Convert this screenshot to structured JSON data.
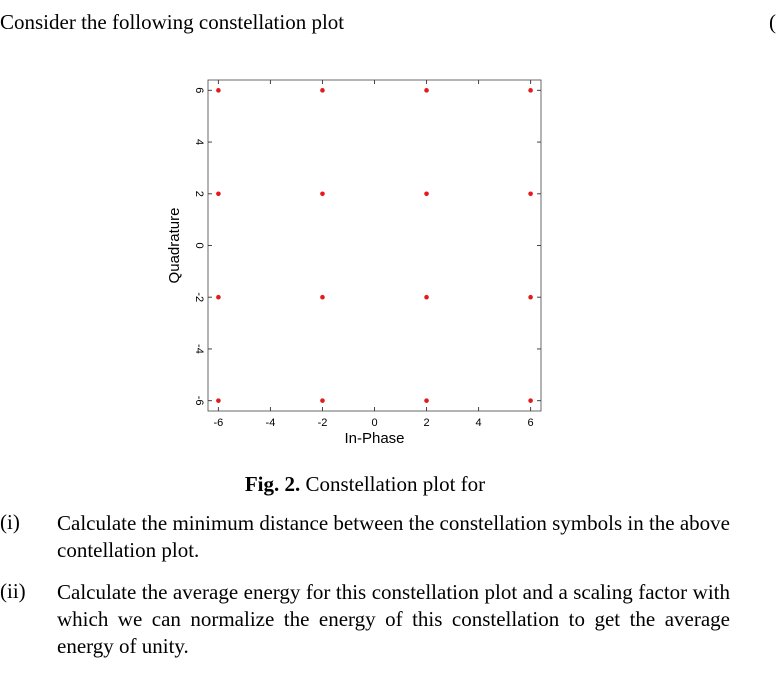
{
  "header": {
    "intro": "Consider the following constellation plot",
    "margin_mark": "("
  },
  "chart_data": {
    "type": "scatter",
    "xlabel": "In-Phase",
    "ylabel": "Quadrature",
    "x": [
      -6,
      -2,
      2,
      6,
      -6,
      -2,
      2,
      6,
      -6,
      -2,
      2,
      6,
      -6,
      -2,
      2,
      6
    ],
    "values": [
      6,
      6,
      6,
      6,
      2,
      2,
      2,
      2,
      -2,
      -2,
      -2,
      -2,
      -6,
      -6,
      -6,
      -6
    ],
    "color": "#e41a1c",
    "xlim": [
      -6.4,
      6.4
    ],
    "ylim": [
      -6.4,
      6.4
    ],
    "xticks": [
      -6,
      -4,
      -2,
      0,
      2,
      4,
      6
    ],
    "yticks": [
      -6,
      -4,
      -2,
      0,
      2,
      4,
      6
    ]
  },
  "caption": {
    "label": "Fig. 2.",
    "text": "Constellation plot for"
  },
  "questions": [
    {
      "label": "(i)",
      "text": "Calculate the minimum distance between the constellation symbols in the above contellation plot."
    },
    {
      "label": "(ii)",
      "text": "Calculate the average energy for this constellation plot and a scaling factor with which we can normalize the energy of this constellation to get the average energy of unity."
    }
  ]
}
